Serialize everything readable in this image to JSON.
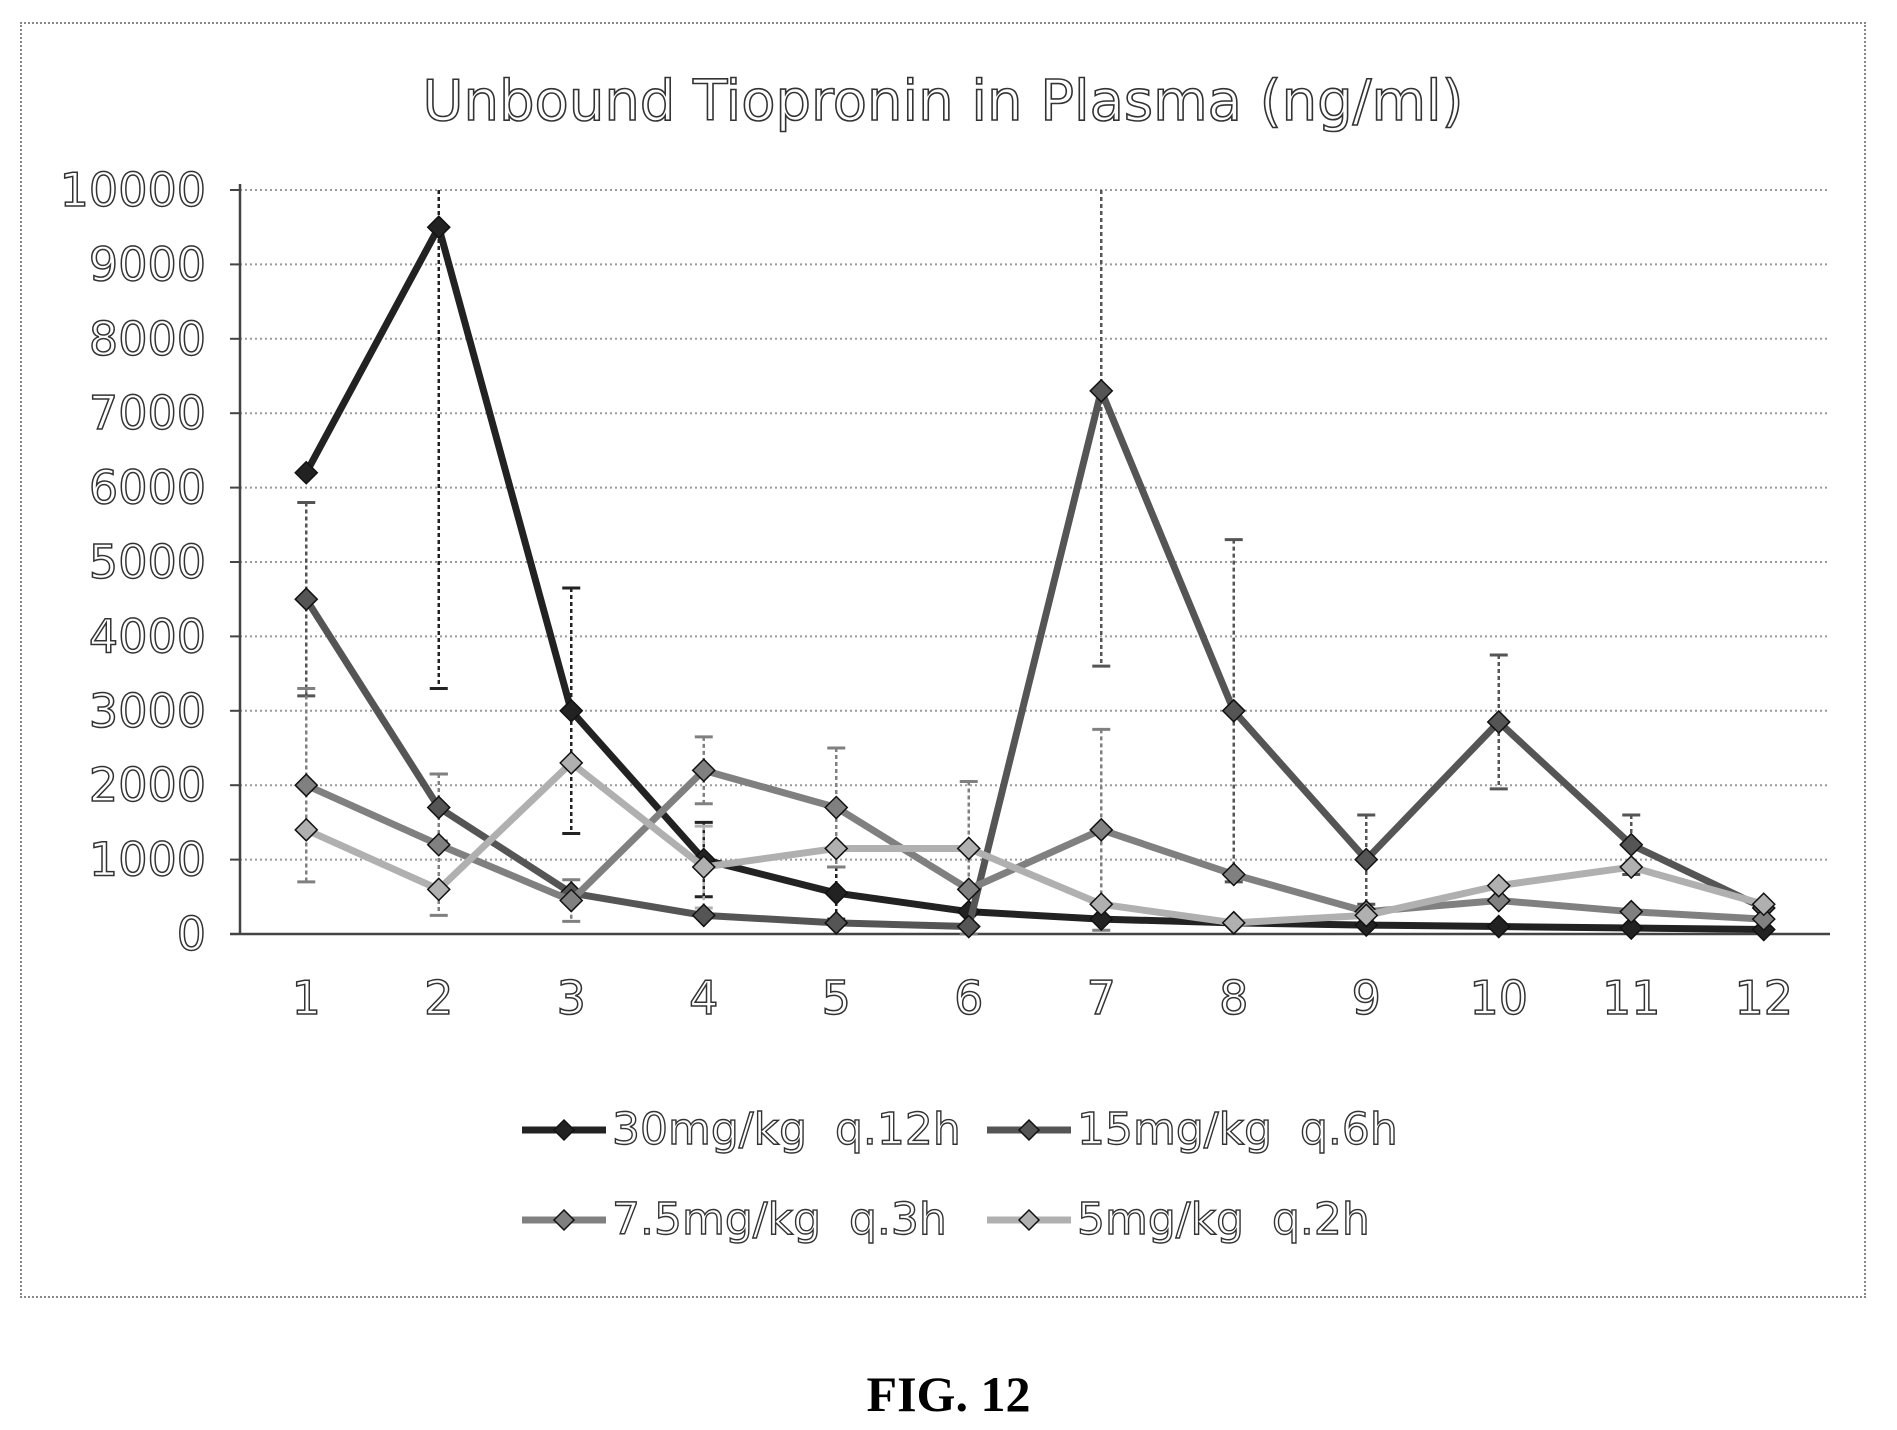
{
  "figure_label": "FIG. 12",
  "chart_data": {
    "type": "line",
    "title": "Unbound Tiopronin in Plasma (ng/ml)",
    "xlabel": "",
    "ylabel": "",
    "categories": [
      "1",
      "2",
      "3",
      "4",
      "5",
      "6",
      "7",
      "8",
      "9",
      "10",
      "11",
      "12"
    ],
    "ylim": [
      0,
      10000
    ],
    "yticks": [
      0,
      1000,
      2000,
      3000,
      4000,
      5000,
      6000,
      7000,
      8000,
      9000,
      10000
    ],
    "grid": true,
    "legend_position": "bottom",
    "series": [
      {
        "name": "30mg/kg  q.12h",
        "color": "#222222",
        "values": [
          6200,
          9500,
          3000,
          1000,
          550,
          300,
          200,
          150,
          120,
          100,
          80,
          60
        ],
        "error": [
          null,
          6200,
          1650,
          500,
          350,
          null,
          null,
          null,
          null,
          null,
          null,
          null
        ]
      },
      {
        "name": "15mg/kg  q.6h",
        "color": "#555555",
        "values": [
          4500,
          1700,
          550,
          250,
          150,
          100,
          7300,
          3000,
          1000,
          2850,
          1200,
          350
        ],
        "error": [
          1300,
          450,
          null,
          null,
          null,
          null,
          3700,
          2300,
          600,
          900,
          400,
          null
        ]
      },
      {
        "name": "7.5mg/kg  q.3h",
        "color": "#808080",
        "values": [
          2000,
          1200,
          450,
          2200,
          1700,
          600,
          1400,
          800,
          300,
          450,
          300,
          200
        ],
        "error": [
          1300,
          950,
          280,
          450,
          800,
          1450,
          1350,
          null,
          null,
          null,
          null,
          null
        ]
      },
      {
        "name": "5mg/kg  q.2h",
        "color": "#b0b0b0",
        "values": [
          1400,
          600,
          2300,
          900,
          1150,
          1150,
          400,
          150,
          250,
          650,
          900,
          400
        ],
        "error": [
          null,
          null,
          null,
          550,
          null,
          null,
          null,
          null,
          null,
          null,
          null,
          null
        ]
      }
    ]
  }
}
